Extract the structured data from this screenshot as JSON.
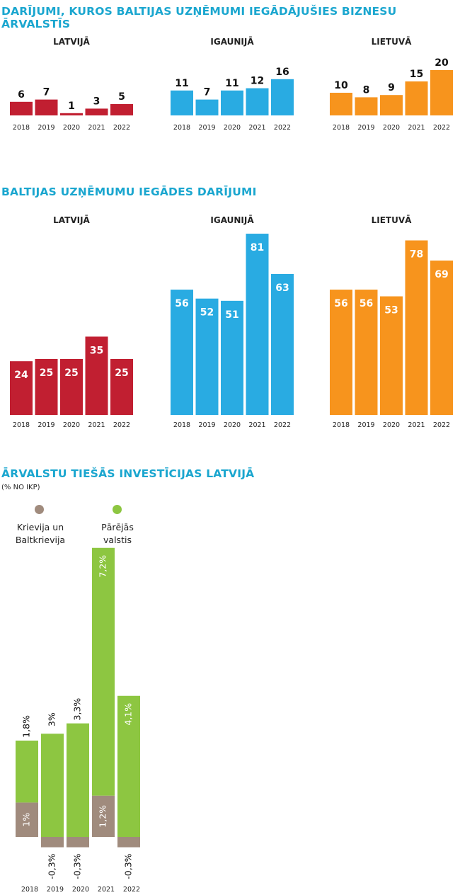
{
  "section1": {
    "title": "DARĪJUMI, KUROS BALTIJAS UZŅĒMUMI IEGĀDĀJUŠIES BIZNESU ĀRVALSTĪS"
  },
  "section2": {
    "title": "BALTIJAS UZŅĒMUMU IEGĀDES DARĪJUMI"
  },
  "section3": {
    "title": "ĀRVALSTU TIEŠĀS INVESTĪCIJAS LATVIJĀ",
    "subtitle": "(% NO IKP)",
    "legend": [
      {
        "label": "Krievija un Baltkrievija",
        "color": "#a08b7d"
      },
      {
        "label": "Pārējās valstis",
        "color": "#8dc641"
      }
    ]
  },
  "chart_data": [
    {
      "type": "bar",
      "group": "section1",
      "panel_title": "LATVIJĀ",
      "color": "#c11f31",
      "categories": [
        "2018",
        "2019",
        "2020",
        "2021",
        "2022"
      ],
      "values": [
        6,
        7,
        1,
        3,
        5
      ]
    },
    {
      "type": "bar",
      "group": "section1",
      "panel_title": "IGAUNIJĀ",
      "color": "#29abe2",
      "categories": [
        "2018",
        "2019",
        "2020",
        "2021",
        "2022"
      ],
      "values": [
        11,
        7,
        11,
        12,
        16
      ]
    },
    {
      "type": "bar",
      "group": "section1",
      "panel_title": "LIETUVĀ",
      "color": "#f7941d",
      "categories": [
        "2018",
        "2019",
        "2020",
        "2021",
        "2022"
      ],
      "values": [
        10,
        8,
        9,
        15,
        20
      ]
    },
    {
      "type": "bar",
      "group": "section2",
      "panel_title": "LATVIJĀ",
      "color": "#c11f31",
      "categories": [
        "2018",
        "2019",
        "2020",
        "2021",
        "2022"
      ],
      "values": [
        24,
        25,
        25,
        35,
        25
      ]
    },
    {
      "type": "bar",
      "group": "section2",
      "panel_title": "IGAUNIJĀ",
      "color": "#29abe2",
      "categories": [
        "2018",
        "2019",
        "2020",
        "2021",
        "2022"
      ],
      "values": [
        56,
        52,
        51,
        81,
        63
      ]
    },
    {
      "type": "bar",
      "group": "section2",
      "panel_title": "LIETUVĀ",
      "color": "#f7941d",
      "categories": [
        "2018",
        "2019",
        "2020",
        "2021",
        "2022"
      ],
      "values": [
        56,
        56,
        53,
        78,
        69
      ]
    },
    {
      "type": "stacked-bar",
      "group": "section3",
      "categories": [
        "2018",
        "2019",
        "2020",
        "2021",
        "2022"
      ],
      "series": [
        {
          "name": "Krievija un Baltkrievija",
          "color": "#a08b7d",
          "values": [
            1,
            -0.3,
            -0.3,
            1.2,
            -0.3
          ],
          "labels": [
            "1%",
            "-0,3%",
            "-0,3%",
            "1,2%",
            "-0,3%"
          ]
        },
        {
          "name": "Pārējās valstis",
          "color": "#8dc641",
          "values": [
            1.8,
            3,
            3.3,
            7.2,
            4.1
          ],
          "labels": [
            "1,8%",
            "3%",
            "3,3%",
            "7,2%",
            "4,1%"
          ]
        }
      ]
    }
  ]
}
